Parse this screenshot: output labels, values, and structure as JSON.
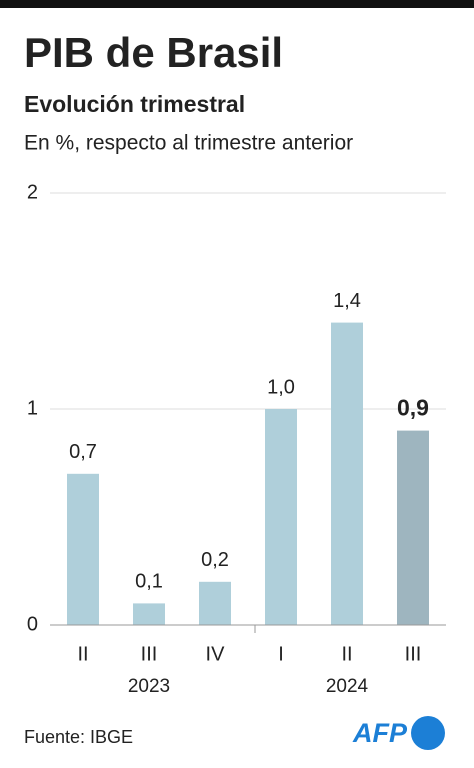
{
  "chart_data": {
    "type": "bar",
    "title": "PIB de Brasil",
    "subtitle": "Evolución trimestral",
    "y_label": "En %, respecto al trimestre anterior",
    "categories": [
      "II",
      "III",
      "IV",
      "I",
      "II",
      "III"
    ],
    "x_groups": [
      "2023",
      "2024"
    ],
    "values": [
      0.7,
      0.1,
      0.2,
      1.0,
      1.4,
      0.9
    ],
    "value_labels": [
      "0,7",
      "0,1",
      "0,2",
      "1,0",
      "1,4",
      "0,9"
    ],
    "colors": [
      "#afcfda",
      "#afcfda",
      "#afcfda",
      "#afcfda",
      "#afcfda",
      "#9eb5bf"
    ],
    "ylim": [
      0,
      2
    ],
    "yticks": [
      0,
      1,
      2
    ],
    "grid": true,
    "source": "Fuente: IBGE",
    "logo": "AFP"
  }
}
